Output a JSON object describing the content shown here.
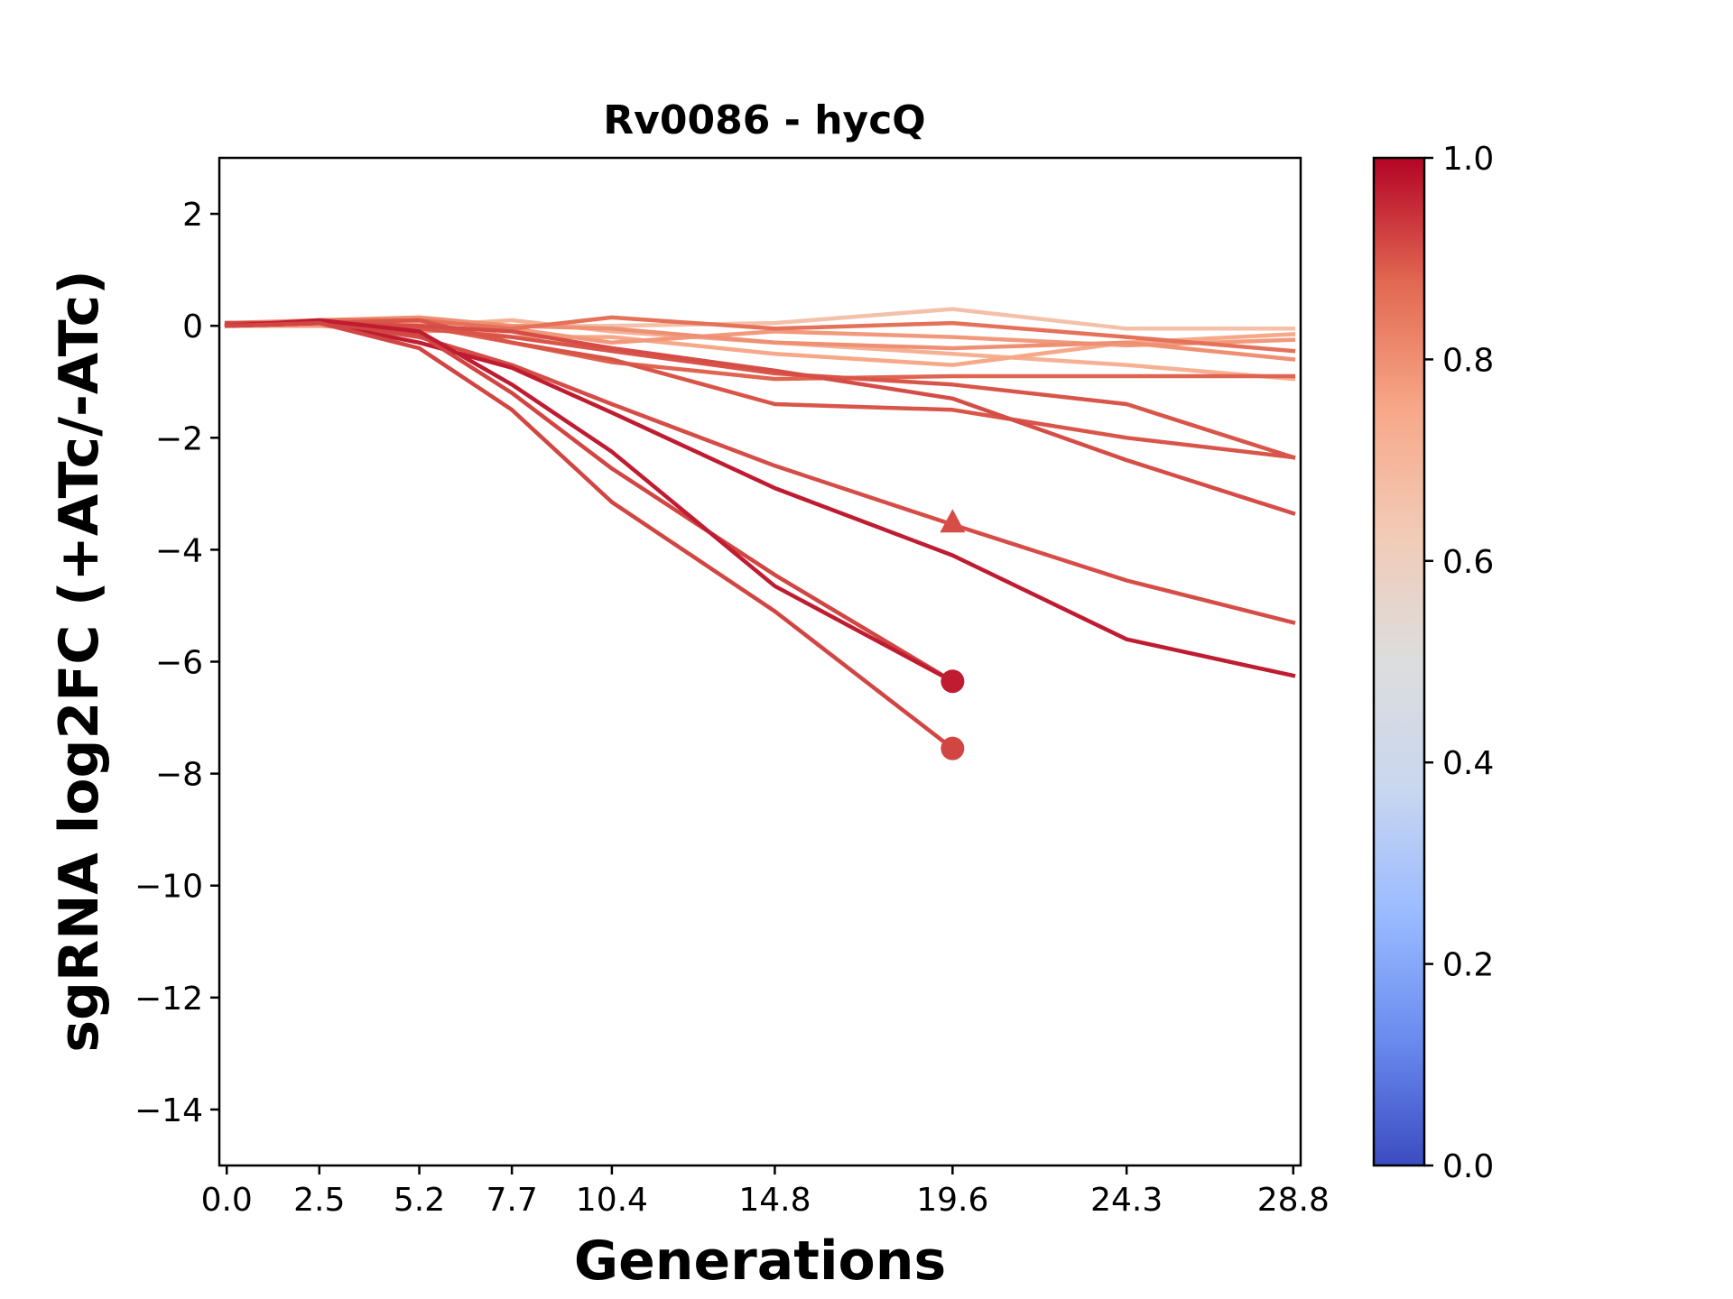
{
  "chart_data": {
    "type": "line",
    "title": "Rv0086 - hycQ",
    "xlabel": "Generations",
    "ylabel": "sgRNA log2FC (+ATc/-ATc)",
    "x_ticks": [
      0.0,
      2.5,
      5.2,
      7.7,
      10.4,
      14.8,
      19.6,
      24.3,
      28.8
    ],
    "x_tick_labels": [
      "0.0",
      "2.5",
      "5.2",
      "7.7",
      "10.4",
      "14.8",
      "19.6",
      "24.3",
      "28.8"
    ],
    "xlim": [
      -0.2,
      29.0
    ],
    "ylim": [
      -15,
      3
    ],
    "y_ticks": [
      2,
      0,
      -2,
      -4,
      -6,
      -8,
      -10,
      -12,
      -14
    ],
    "y_tick_labels": [
      "2",
      "0",
      "−2",
      "−4",
      "−6",
      "−8",
      "−10",
      "−12",
      "−14"
    ],
    "grid": false,
    "colorbar": {
      "colormap": "coolwarm",
      "range": [
        0.0,
        1.0
      ],
      "ticks": [
        0.0,
        0.2,
        0.4,
        0.6,
        0.8,
        1.0
      ],
      "tick_labels": [
        "0.0",
        "0.2",
        "0.4",
        "0.6",
        "0.8",
        "1.0"
      ],
      "stops": [
        "#3b4cc0",
        "#6a8bef",
        "#9abbff",
        "#c9d7f0",
        "#dddddd",
        "#f2cbb7",
        "#f7a889",
        "#e26952",
        "#b40426"
      ]
    },
    "series": [
      {
        "value": 0.66,
        "x": [
          0,
          2.5,
          5.2,
          7.7,
          10.4,
          14.8,
          19.6,
          24.3,
          28.8
        ],
        "y": [
          0.0,
          0.05,
          0.1,
          0.0,
          0.0,
          0.05,
          0.3,
          -0.05,
          -0.05
        ],
        "marker": "none"
      },
      {
        "value": 0.72,
        "x": [
          0,
          2.5,
          5.2,
          7.7,
          10.4,
          14.8,
          19.6,
          24.3,
          28.8
        ],
        "y": [
          0.05,
          0.05,
          0.0,
          0.1,
          -0.1,
          -0.3,
          -0.5,
          -0.7,
          -0.95
        ],
        "marker": "none"
      },
      {
        "value": 0.75,
        "x": [
          0,
          2.5,
          5.2,
          7.7,
          10.4,
          14.8,
          19.6,
          24.3,
          28.8
        ],
        "y": [
          0.0,
          0.05,
          0.05,
          -0.2,
          -0.2,
          -0.5,
          -0.7,
          -0.3,
          -0.15
        ],
        "marker": "none"
      },
      {
        "value": 0.78,
        "x": [
          0,
          2.5,
          5.2,
          7.7,
          10.4,
          14.8,
          19.6,
          24.3,
          28.8
        ],
        "y": [
          0.0,
          0.0,
          -0.1,
          -0.05,
          -0.3,
          -0.1,
          -0.2,
          -0.35,
          -0.25
        ],
        "marker": "none"
      },
      {
        "value": 0.8,
        "x": [
          0,
          2.5,
          5.2,
          7.7,
          10.4,
          14.8,
          19.6,
          24.3,
          28.8
        ],
        "y": [
          0.05,
          0.1,
          0.15,
          0.0,
          -0.05,
          -0.3,
          -0.4,
          -0.3,
          -0.6
        ],
        "marker": "none"
      },
      {
        "value": 0.86,
        "x": [
          0,
          2.5,
          5.2,
          7.7,
          10.4,
          14.8,
          19.6,
          24.3,
          28.8
        ],
        "y": [
          0.0,
          0.1,
          0.1,
          -0.05,
          0.15,
          -0.05,
          0.05,
          -0.2,
          -0.45
        ],
        "marker": "none"
      },
      {
        "value": 0.88,
        "x": [
          0,
          2.5,
          5.2,
          7.7,
          10.4,
          14.8,
          19.6,
          24.3,
          28.8
        ],
        "y": [
          0.0,
          0.05,
          0.0,
          -0.3,
          -0.65,
          -0.95,
          -0.9,
          -0.9,
          -0.9
        ],
        "marker": "none"
      },
      {
        "value": 0.9,
        "x": [
          0,
          2.5,
          5.2,
          7.7,
          10.4,
          14.8,
          19.6,
          24.3,
          28.8
        ],
        "y": [
          0.05,
          0.05,
          -0.05,
          -0.2,
          -0.45,
          -0.85,
          -1.05,
          -1.4,
          -2.35
        ],
        "marker": "none"
      },
      {
        "value": 0.9,
        "x": [
          0,
          2.5,
          5.2,
          7.7,
          10.4,
          14.8,
          19.6,
          24.3,
          28.8
        ],
        "y": [
          0.05,
          0.05,
          0.1,
          -0.3,
          -0.6,
          -1.4,
          -1.5,
          -2.0,
          -2.35
        ],
        "marker": "none"
      },
      {
        "value": 0.91,
        "x": [
          0,
          2.5,
          5.2,
          7.7,
          10.4,
          14.8,
          19.6,
          24.3,
          28.8
        ],
        "y": [
          0.0,
          0.05,
          0.0,
          -0.1,
          -0.4,
          -0.8,
          -1.3,
          -2.4,
          -3.35
        ],
        "marker": "none"
      },
      {
        "value": 0.91,
        "x": [
          0,
          2.5,
          5.2,
          7.7,
          10.4,
          14.8,
          19.6,
          24.3,
          28.8
        ],
        "y": [
          0.0,
          0.05,
          -0.2,
          -0.7,
          -1.4,
          -2.5,
          -3.55,
          -4.55,
          -5.3
        ],
        "marker": "none"
      },
      {
        "value": 0.97,
        "x": [
          0,
          2.5,
          5.2,
          7.7,
          10.4,
          14.8,
          19.6,
          24.3,
          28.8
        ],
        "y": [
          0.0,
          0.05,
          -0.3,
          -0.75,
          -1.55,
          -2.9,
          -4.1,
          -5.6,
          -6.25
        ],
        "marker": "none"
      },
      {
        "value": 0.92,
        "x": [
          0,
          2.5,
          5.2,
          7.7,
          10.4,
          14.8,
          19.6
        ],
        "y": [
          0.05,
          0.05,
          -0.15,
          -1.2,
          -2.55,
          -4.45,
          -6.35
        ],
        "marker": "none"
      },
      {
        "value": 0.97,
        "x": [
          0,
          2.5,
          5.2,
          7.7,
          10.4,
          14.8,
          19.6
        ],
        "y": [
          0.0,
          0.1,
          -0.1,
          -1.05,
          -2.25,
          -4.65,
          -6.35
        ],
        "marker": "circle"
      },
      {
        "value": 0.92,
        "x": [
          0,
          2.5,
          5.2,
          7.7,
          10.4,
          14.8,
          19.6
        ],
        "y": [
          0.0,
          0.05,
          -0.4,
          -1.5,
          -3.15,
          -5.1,
          -7.55
        ],
        "marker": "circle"
      },
      {
        "value": 0.91,
        "x": [
          19.6
        ],
        "y": [
          -3.5
        ],
        "marker": "triangle"
      }
    ]
  }
}
